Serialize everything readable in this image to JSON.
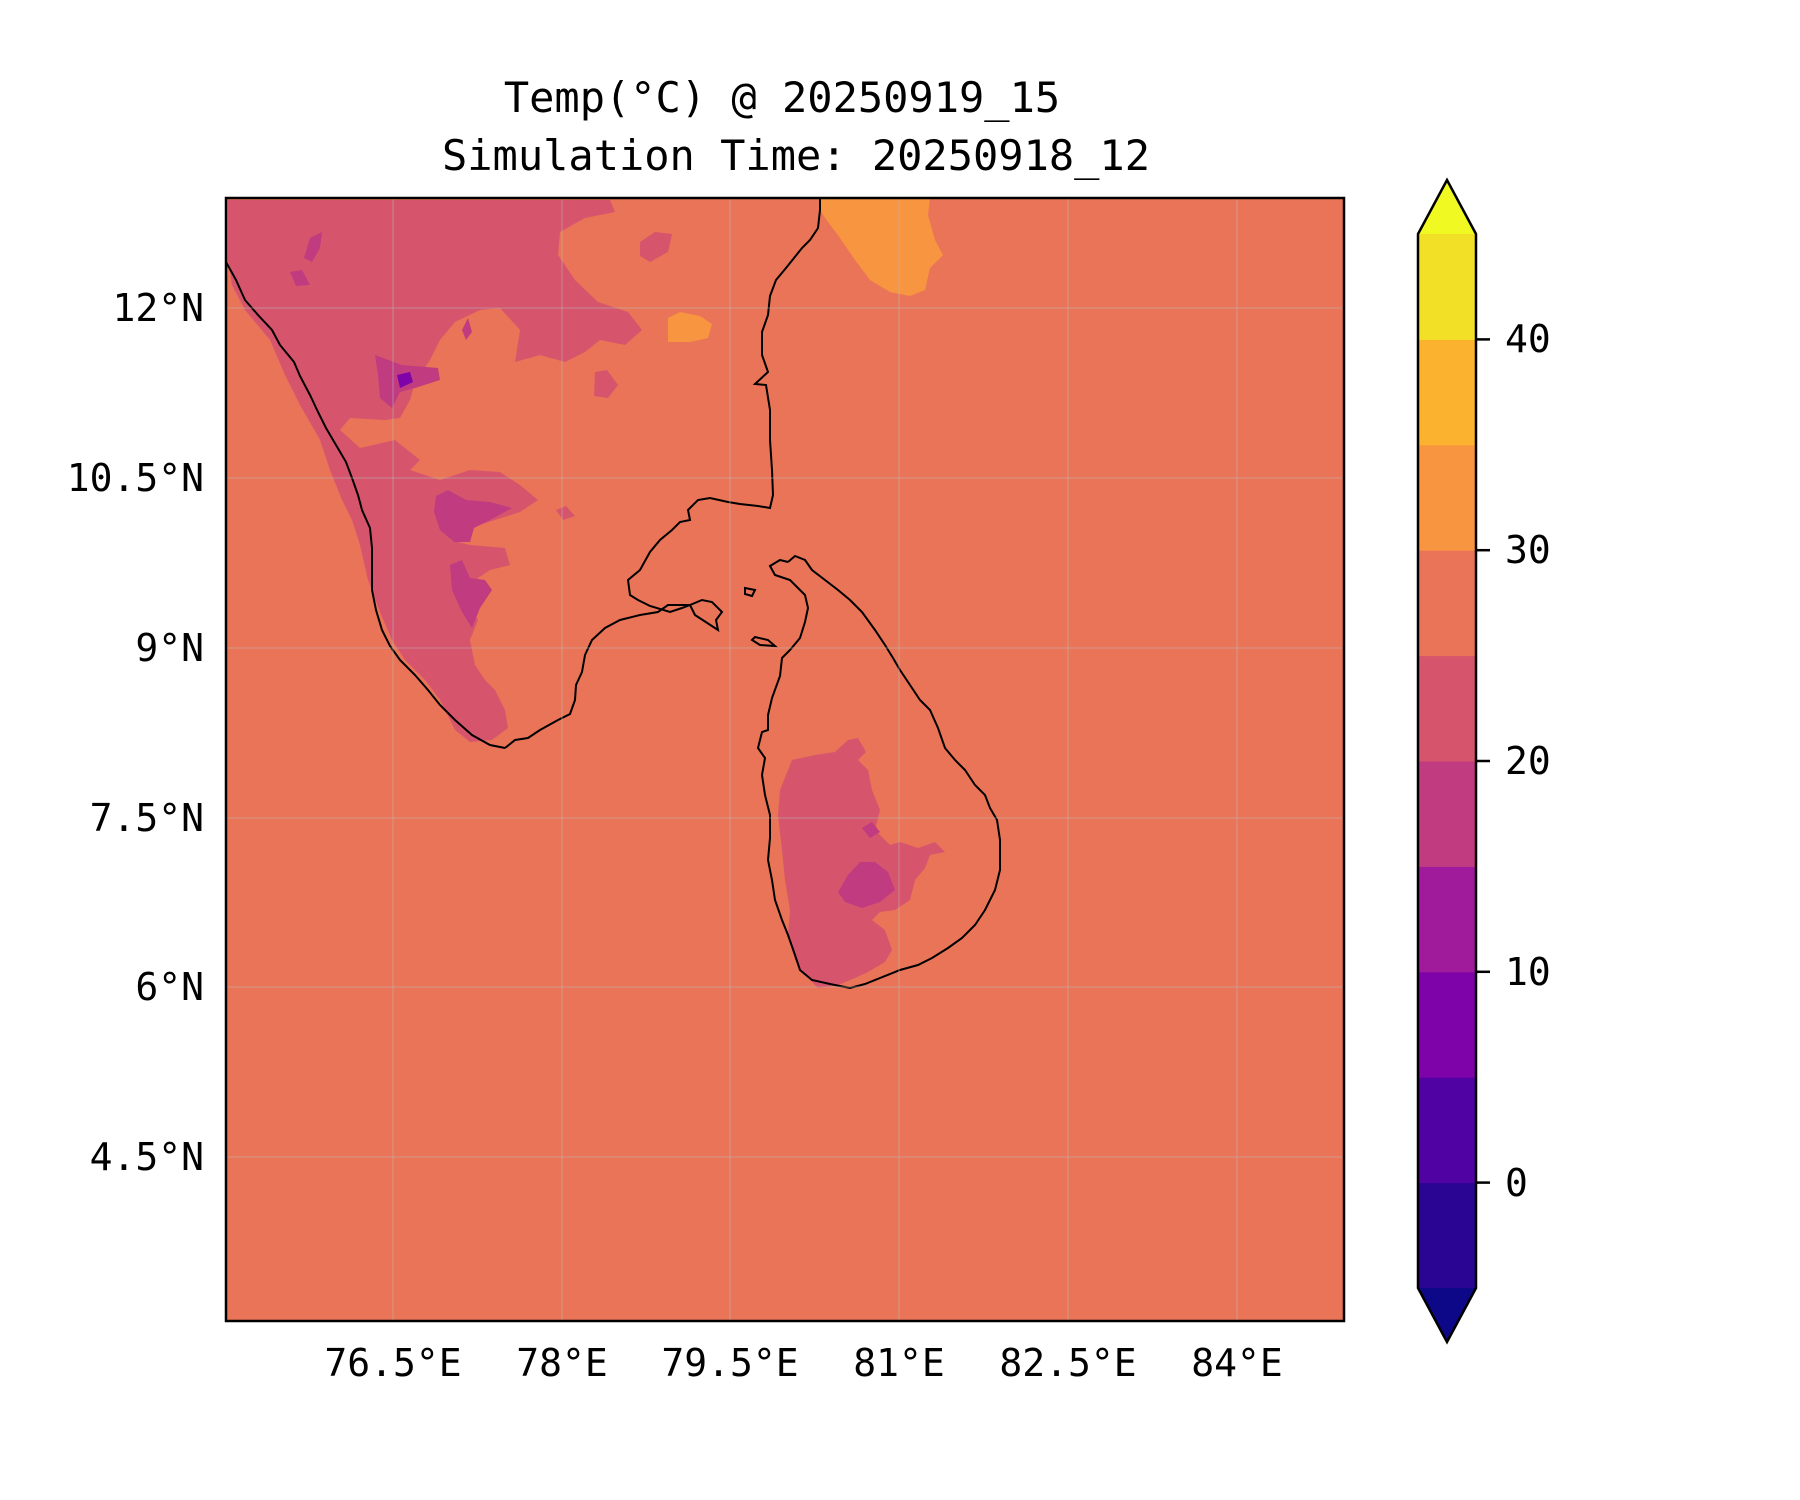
{
  "title_line1": "Temp(°C) @ 20250919_15",
  "title_line2": "Simulation Time: 20250918_12",
  "lon_ticks": [
    "76.5°E",
    "78°E",
    "79.5°E",
    "81°E",
    "82.5°E",
    "84°E"
  ],
  "lat_ticks": [
    "12°N",
    "10.5°N",
    "9°N",
    "7.5°N",
    "6°N",
    "4.5°N"
  ],
  "colorbar": {
    "ticks": [
      "40",
      "30",
      "20",
      "10",
      "0"
    ],
    "levels": [
      -5,
      0,
      5,
      10,
      15,
      20,
      25,
      30,
      35,
      40,
      45
    ],
    "colors": [
      "#2a0593",
      "#5002a2",
      "#7e03a8",
      "#a01a9c",
      "#c03b80",
      "#d6556d",
      "#ea7457",
      "#f89540",
      "#fbb32f",
      "#f2e027"
    ],
    "under_color": "#0d0887",
    "over_color": "#f0f921"
  },
  "map_colors": {
    "ocean_fill": "#ea7457",
    "highland_fill": "#d6556d",
    "peak_fill": "#c03b80",
    "summit_fill": "#7e03a8",
    "hot_fill": "#f89540",
    "coastline": "#000000"
  }
}
